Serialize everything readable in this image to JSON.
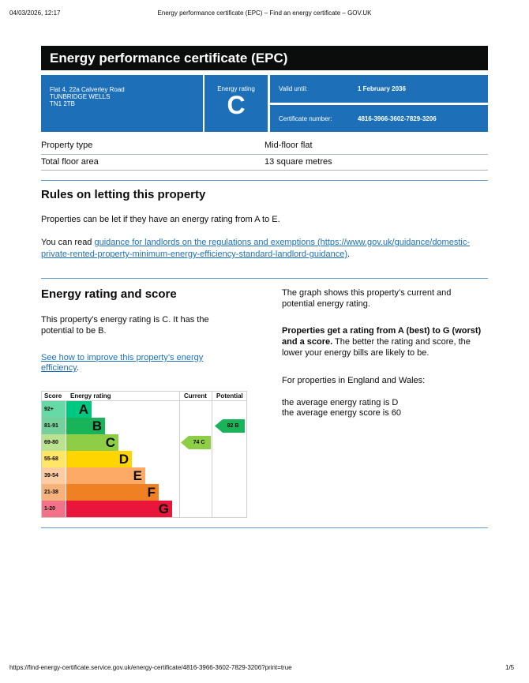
{
  "print_header": {
    "datetime": "04/03/2026, 12:17",
    "title": "Energy performance certificate (EPC) – Find an energy certificate – GOV.UK"
  },
  "page_title": "Energy performance certificate (EPC)",
  "summary": {
    "address": [
      "Flat 4, 22a Calverley Road",
      "TUNBRIDGE WELLS",
      "TN1 2TB"
    ],
    "rating_label": "Energy rating",
    "rating": "C",
    "valid_label": "Valid until:",
    "valid_value": "1 February 2036",
    "cert_label": "Certificate number:",
    "cert_value": "4816-3966-3602-7829-3206",
    "color": "#1d70b8"
  },
  "property": [
    {
      "label": "Property type",
      "value": "Mid-floor flat"
    },
    {
      "label": "Total floor area",
      "value": "13 square metres"
    }
  ],
  "rules": {
    "heading": "Rules on letting this property",
    "p1": "Properties can be let if they have an energy rating from A to E.",
    "p2_prefix": "You can read ",
    "p2_link": "guidance for landlords on the regulations and exemptions (https://www.gov.uk/guidance/domestic-private-rented-property-minimum-energy-efficiency-standard-landlord-guidance)",
    "p2_suffix": "."
  },
  "rating_section": {
    "heading": "Energy rating and score",
    "p1": "This property’s energy rating is C. It has the potential to be B.",
    "link": "See how to improve this property’s energy efficiency",
    "link_suffix": ".",
    "r1": "The graph shows this property’s current and potential energy rating.",
    "r2_bold": "Properties get a rating from A (best) to G (worst) and a score.",
    "r2_rest": " The better the rating and score, the lower your energy bills are likely to be.",
    "r3": "For properties in England and Wales:",
    "r4": "the average energy rating is D",
    "r5": "the average energy score is 60"
  },
  "chart": {
    "headers": [
      "Score",
      "Energy rating",
      "Current",
      "Potential"
    ],
    "bands": [
      {
        "score": "92+",
        "letter": "A",
        "color": "#00c781",
        "light": "#66d9a6"
      },
      {
        "score": "81-91",
        "letter": "B",
        "color": "#19b459",
        "light": "#75d09b"
      },
      {
        "score": "69-80",
        "letter": "C",
        "color": "#8dce46",
        "light": "#bbe290"
      },
      {
        "score": "55-68",
        "letter": "D",
        "color": "#ffd500",
        "light": "#ffe666"
      },
      {
        "score": "39-54",
        "letter": "E",
        "color": "#fcaa65",
        "light": "#fdcca3"
      },
      {
        "score": "21-38",
        "letter": "F",
        "color": "#ef8023",
        "light": "#f5b37b"
      },
      {
        "score": "1-20",
        "letter": "G",
        "color": "#e9153b",
        "light": "#f27389"
      }
    ],
    "current": {
      "score": 74,
      "letter": "C",
      "label": "74  C"
    },
    "potential": {
      "score": 82,
      "letter": "B",
      "label": "82  B"
    }
  },
  "print_footer": {
    "url": "https://find-energy-certificate.service.gov.uk/energy-certificate/4816-3966-3602-7829-3206?print=true",
    "page": "1/5"
  }
}
